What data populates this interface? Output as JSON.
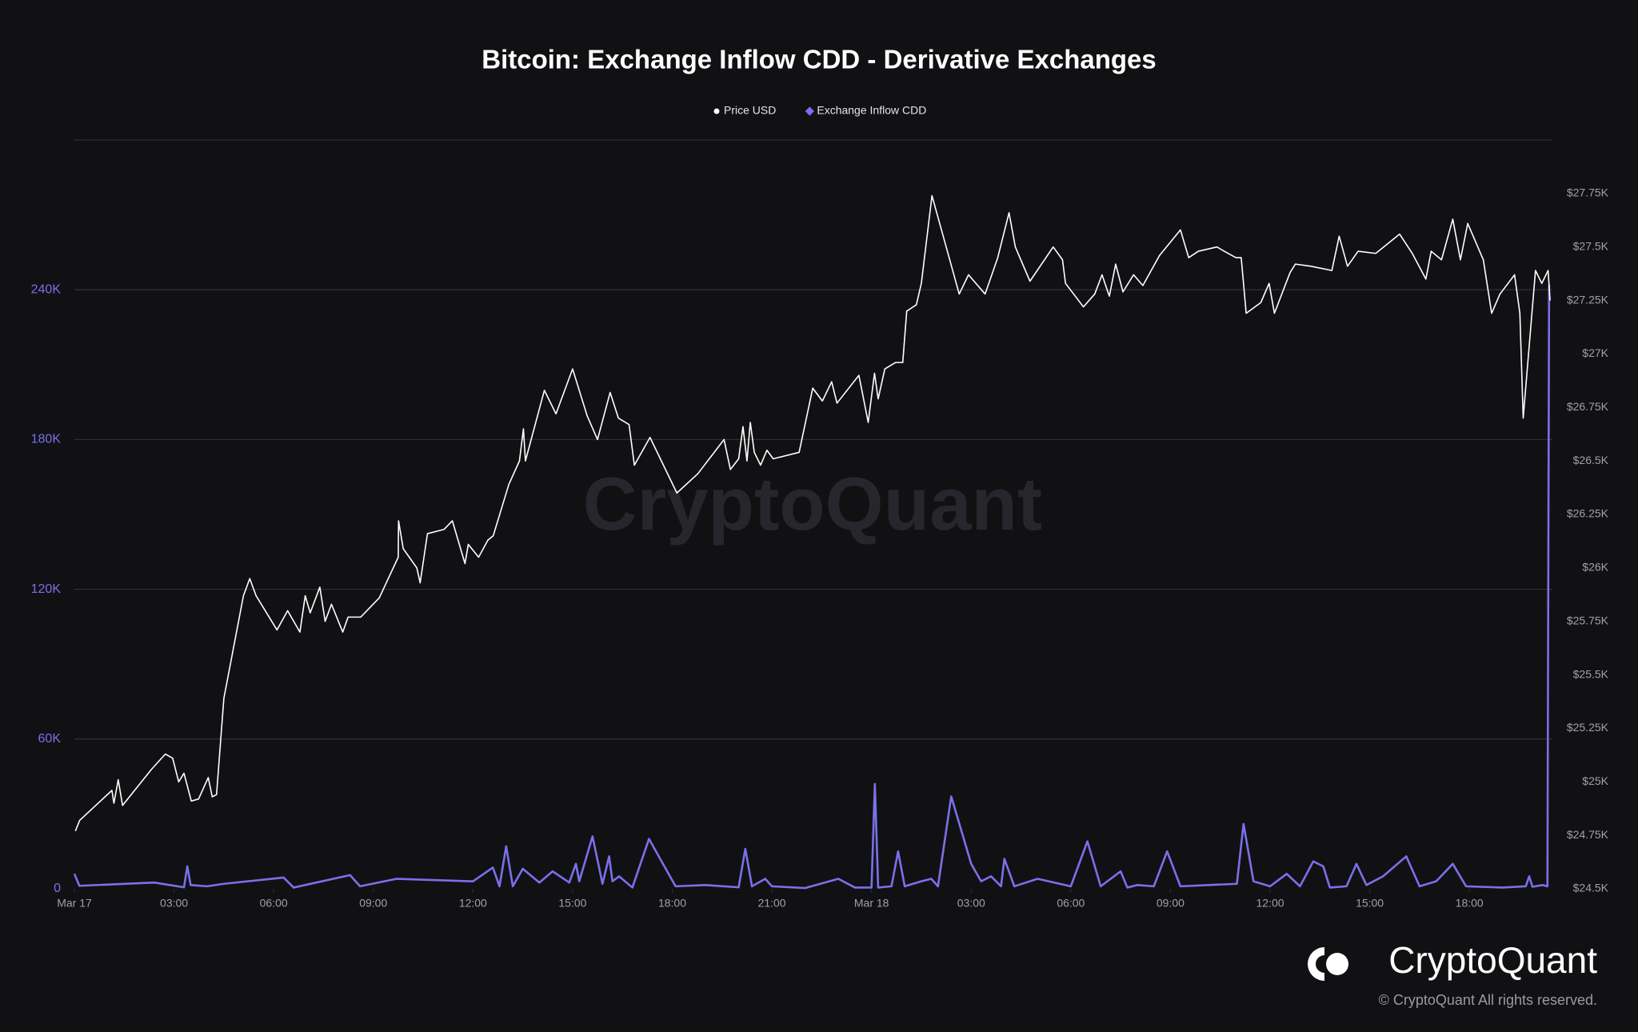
{
  "chart_data": {
    "type": "line",
    "title": "Bitcoin: Exchange Inflow CDD - Derivative Exchanges",
    "watermark": "CryptoQuant",
    "logo_text": "CryptoQuant",
    "copyright": "© CryptoQuant All rights reserved.",
    "legend": "top",
    "grid": true,
    "xlim": [
      0,
      44.5
    ],
    "xticks": [
      {
        "value": 0,
        "label": "Mar 17"
      },
      {
        "value": 3,
        "label": "03:00"
      },
      {
        "value": 6,
        "label": "06:00"
      },
      {
        "value": 9,
        "label": "09:00"
      },
      {
        "value": 12,
        "label": "12:00"
      },
      {
        "value": 15,
        "label": "15:00"
      },
      {
        "value": 18,
        "label": "18:00"
      },
      {
        "value": 21,
        "label": "21:00"
      },
      {
        "value": 24,
        "label": "Mar 18"
      },
      {
        "value": 27,
        "label": "03:00"
      },
      {
        "value": 30,
        "label": "06:00"
      },
      {
        "value": 33,
        "label": "09:00"
      },
      {
        "value": 36,
        "label": "12:00"
      },
      {
        "value": 39,
        "label": "15:00"
      },
      {
        "value": 42,
        "label": "18:00"
      }
    ],
    "ylim": [
      0,
      300000
    ],
    "yticks": [
      0,
      {
        "value": 60000,
        "label": "60K"
      },
      {
        "value": 120000,
        "label": "120K"
      },
      {
        "value": 180000,
        "label": "180K"
      },
      {
        "value": 240000,
        "label": "240K"
      }
    ],
    "y2lim": [
      24500,
      28000
    ],
    "y2ticks": [
      {
        "value": 24500,
        "label": "$24.5K"
      },
      {
        "value": 24750,
        "label": "$24.75K"
      },
      {
        "value": 25000,
        "label": "$25K"
      },
      {
        "value": 25250,
        "label": "$25.25K"
      },
      {
        "value": 25500,
        "label": "$25.5K"
      },
      {
        "value": 25750,
        "label": "$25.75K"
      },
      {
        "value": 26000,
        "label": "$26K"
      },
      {
        "value": 26250,
        "label": "$26.25K"
      },
      {
        "value": 26500,
        "label": "$26.5K"
      },
      {
        "value": 26750,
        "label": "$26.75K"
      },
      {
        "value": 27000,
        "label": "$27K"
      },
      {
        "value": 27250,
        "label": "$27.25K"
      },
      {
        "value": 27500,
        "label": "$27.5K"
      },
      {
        "value": 27750,
        "label": "$27.75K"
      }
    ],
    "series": [
      {
        "name": "Price USD",
        "color": "#ffffff",
        "marker": "circle",
        "axis": "y2",
        "x": [
          0.03,
          0.16,
          1.13,
          1.19,
          1.32,
          1.45,
          2.33,
          2.74,
          2.96,
          3.14,
          3.3,
          3.52,
          3.74,
          4.03,
          4.15,
          4.28,
          4.5,
          5.09,
          5.28,
          5.47,
          6.1,
          6.42,
          6.79,
          6.95,
          7.1,
          7.39,
          7.55,
          7.74,
          8.08,
          8.24,
          8.62,
          9.18,
          9.75,
          9.76,
          9.9,
          10.31,
          10.41,
          10.63,
          11.13,
          11.38,
          11.76,
          11.86,
          12.17,
          12.45,
          12.61,
          13.08,
          13.4,
          13.52,
          13.58,
          14.15,
          14.5,
          15.0,
          15.44,
          15.75,
          16.13,
          16.38,
          16.7,
          16.86,
          17.33,
          18.14,
          18.77,
          19.56,
          19.75,
          20.0,
          20.13,
          20.25,
          20.35,
          20.47,
          20.66,
          20.85,
          21.04,
          21.82,
          22.23,
          22.52,
          22.8,
          22.96,
          23.62,
          23.9,
          24.09,
          24.2,
          24.4,
          24.72,
          24.94,
          25.06,
          25.35,
          25.5,
          25.82,
          26.64,
          26.92,
          27.42,
          27.8,
          28.14,
          28.33,
          28.77,
          29.47,
          29.75,
          29.84,
          30.38,
          30.72,
          30.94,
          31.16,
          31.35,
          31.57,
          31.89,
          32.17,
          32.67,
          33.3,
          33.55,
          33.84,
          34.4,
          34.62,
          34.97,
          35.13,
          35.28,
          35.72,
          35.97,
          36.13,
          36.6,
          36.76,
          37.23,
          37.86,
          38.08,
          38.33,
          38.65,
          39.18,
          39.9,
          40.28,
          40.69,
          40.85,
          41.16,
          41.5,
          41.73,
          41.95,
          42.42,
          42.67,
          42.92,
          43.36,
          43.52,
          43.62,
          43.99,
          44.18,
          44.37,
          44.43
        ],
        "values": [
          24770,
          24820,
          24960,
          24900,
          25010,
          24890,
          25060,
          25130,
          25110,
          25000,
          25040,
          24910,
          24920,
          25020,
          24930,
          24940,
          25390,
          25870,
          25950,
          25870,
          25710,
          25800,
          25700,
          25870,
          25790,
          25910,
          25750,
          25830,
          25700,
          25770,
          25770,
          25860,
          26050,
          26220,
          26090,
          26000,
          25930,
          26160,
          26180,
          26220,
          26020,
          26110,
          26050,
          26130,
          26150,
          26390,
          26500,
          26650,
          26500,
          26830,
          26720,
          26930,
          26710,
          26600,
          26820,
          26700,
          26670,
          26480,
          26610,
          26350,
          26440,
          26600,
          26460,
          26510,
          26660,
          26500,
          26680,
          26540,
          26480,
          26550,
          26510,
          26540,
          26840,
          26780,
          26870,
          26770,
          26900,
          26680,
          26910,
          26790,
          26930,
          26960,
          26960,
          27200,
          27230,
          27330,
          27740,
          27280,
          27370,
          27280,
          27450,
          27660,
          27500,
          27340,
          27500,
          27440,
          27330,
          27220,
          27280,
          27370,
          27270,
          27420,
          27290,
          27370,
          27320,
          27460,
          27580,
          27450,
          27480,
          27500,
          27480,
          27450,
          27450,
          27190,
          27240,
          27330,
          27190,
          27380,
          27420,
          27410,
          27390,
          27550,
          27410,
          27480,
          27470,
          27560,
          27470,
          27350,
          27480,
          27440,
          27630,
          27440,
          27610,
          27440,
          27190,
          27280,
          27370,
          27190,
          26700,
          27390,
          27330,
          27390,
          27250
        ]
      },
      {
        "name": "Exchange Inflow CDD",
        "color": "#7b70ea",
        "marker": "diamond",
        "x": [
          0,
          0.15,
          2.4,
          3.3,
          3.4,
          3.5,
          4.0,
          4.5,
          6.3,
          6.6,
          8.3,
          8.6,
          9.7,
          12.0,
          12.6,
          12.8,
          13.0,
          13.2,
          13.5,
          14.0,
          14.4,
          14.9,
          15.1,
          15.2,
          15.6,
          15.9,
          16.1,
          16.2,
          16.4,
          16.8,
          17.3,
          18.1,
          19.0,
          20.0,
          20.2,
          20.4,
          20.8,
          21.0,
          22.0,
          23.0,
          23.5,
          24.0,
          24.1,
          24.2,
          24.6,
          24.8,
          25.0,
          25.5,
          25.8,
          26.0,
          26.4,
          27.0,
          27.3,
          27.6,
          27.9,
          28.0,
          28.3,
          29.0,
          30.0,
          30.5,
          30.9,
          31.5,
          31.7,
          32.0,
          32.5,
          32.9,
          33.3,
          35.0,
          35.2,
          35.5,
          36.0,
          36.5,
          36.9,
          37.3,
          37.6,
          37.8,
          38.3,
          38.6,
          38.9,
          39.4,
          40.1,
          40.5,
          41.0,
          41.5,
          41.9,
          43.0,
          43.7,
          43.8,
          43.9,
          44.2,
          44.35,
          44.4
        ],
        "values": [
          6000,
          1200,
          2500,
          600,
          9000,
          1500,
          1000,
          2000,
          4500,
          500,
          5500,
          1000,
          4000,
          3000,
          8500,
          1000,
          17000,
          1000,
          8000,
          2500,
          7000,
          2500,
          10000,
          3000,
          21000,
          2000,
          13000,
          3000,
          5000,
          500,
          20000,
          1000,
          1500,
          600,
          16000,
          1000,
          4000,
          1000,
          300,
          4000,
          500,
          500,
          42000,
          500,
          1000,
          15000,
          1000,
          3000,
          4000,
          1000,
          37000,
          10000,
          3000,
          5000,
          1000,
          12000,
          1000,
          4000,
          1000,
          19000,
          1000,
          7000,
          500,
          1500,
          1000,
          15000,
          1000,
          2000,
          26000,
          3000,
          1000,
          6000,
          1000,
          11000,
          9000,
          500,
          1000,
          10000,
          1500,
          5000,
          13000,
          1000,
          3000,
          10000,
          1000,
          500,
          1000,
          5000,
          800,
          1500,
          1000,
          242000
        ]
      }
    ]
  }
}
